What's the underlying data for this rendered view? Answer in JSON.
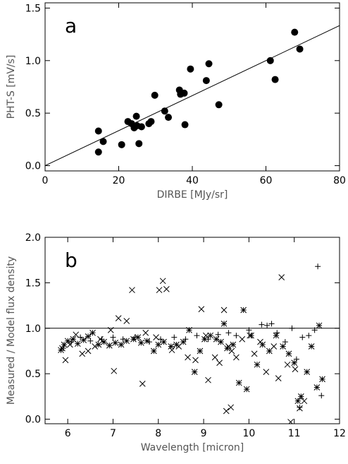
{
  "chart_data": [
    {
      "type": "scatter",
      "panel_label": "a",
      "xlabel": "DIRBE [MJy/sr]",
      "ylabel": "PHT-S [mV/s]",
      "xlim": [
        0,
        80
      ],
      "ylim": [
        -0.05,
        1.55
      ],
      "xticks": [
        0,
        20,
        40,
        60,
        80
      ],
      "yticks": [
        0.0,
        0.5,
        1.0,
        1.5
      ],
      "xtick_labels": [
        "0",
        "20",
        "40",
        "60",
        "80"
      ],
      "ytick_labels": [
        "0.0",
        "0.5",
        "1.0",
        "1.5"
      ],
      "marker": "filled-circle",
      "fit_line": {
        "slope": 0.01667,
        "intercept": 0.0
      },
      "points": [
        {
          "x": 14.5,
          "y": 0.33
        },
        {
          "x": 14.5,
          "y": 0.13
        },
        {
          "x": 15.8,
          "y": 0.23
        },
        {
          "x": 20.8,
          "y": 0.2
        },
        {
          "x": 22.5,
          "y": 0.42
        },
        {
          "x": 23.5,
          "y": 0.4
        },
        {
          "x": 24.2,
          "y": 0.36
        },
        {
          "x": 24.8,
          "y": 0.47
        },
        {
          "x": 25.0,
          "y": 0.38
        },
        {
          "x": 25.5,
          "y": 0.21
        },
        {
          "x": 26.2,
          "y": 0.37
        },
        {
          "x": 28.2,
          "y": 0.4
        },
        {
          "x": 28.8,
          "y": 0.42
        },
        {
          "x": 29.8,
          "y": 0.67
        },
        {
          "x": 32.5,
          "y": 0.52
        },
        {
          "x": 33.5,
          "y": 0.46
        },
        {
          "x": 36.5,
          "y": 0.72
        },
        {
          "x": 36.8,
          "y": 0.68
        },
        {
          "x": 37.8,
          "y": 0.69
        },
        {
          "x": 38.0,
          "y": 0.39
        },
        {
          "x": 39.5,
          "y": 0.92
        },
        {
          "x": 43.8,
          "y": 0.81
        },
        {
          "x": 44.5,
          "y": 0.97
        },
        {
          "x": 47.2,
          "y": 0.58
        },
        {
          "x": 61.2,
          "y": 1.0
        },
        {
          "x": 62.5,
          "y": 0.82
        },
        {
          "x": 67.8,
          "y": 1.27
        },
        {
          "x": 69.2,
          "y": 1.11
        }
      ]
    },
    {
      "type": "scatter",
      "panel_label": "b",
      "xlabel": "Wavelength [micron]",
      "ylabel": "Measured / Model flux density",
      "xlim": [
        5.5,
        12
      ],
      "ylim": [
        -0.05,
        2.0
      ],
      "xticks": [
        6,
        7,
        8,
        9,
        10,
        11,
        12
      ],
      "yticks": [
        0.0,
        0.5,
        1.0,
        1.5,
        2.0
      ],
      "xtick_labels": [
        "6",
        "7",
        "8",
        "9",
        "10",
        "11",
        "12"
      ],
      "ytick_labels": [
        "0.0",
        "0.5",
        "1.0",
        "1.5",
        "2.0"
      ],
      "reference_line": 1.0,
      "series": [
        {
          "marker": "x",
          "points": [
            {
              "x": 5.88,
              "y": 0.78
            },
            {
              "x": 5.95,
              "y": 0.65
            },
            {
              "x": 6.05,
              "y": 0.82
            },
            {
              "x": 6.18,
              "y": 0.93
            },
            {
              "x": 6.32,
              "y": 0.72
            },
            {
              "x": 6.45,
              "y": 0.75
            },
            {
              "x": 6.6,
              "y": 0.8
            },
            {
              "x": 6.72,
              "y": 0.88
            },
            {
              "x": 6.95,
              "y": 0.98
            },
            {
              "x": 7.02,
              "y": 0.53
            },
            {
              "x": 7.12,
              "y": 1.11
            },
            {
              "x": 7.3,
              "y": 1.08
            },
            {
              "x": 7.42,
              "y": 1.42
            },
            {
              "x": 7.65,
              "y": 0.39
            },
            {
              "x": 7.72,
              "y": 0.95
            },
            {
              "x": 7.95,
              "y": 0.9
            },
            {
              "x": 8.02,
              "y": 1.42
            },
            {
              "x": 8.1,
              "y": 1.52
            },
            {
              "x": 8.18,
              "y": 1.43
            },
            {
              "x": 8.3,
              "y": 0.76
            },
            {
              "x": 8.45,
              "y": 0.8
            },
            {
              "x": 8.65,
              "y": 0.68
            },
            {
              "x": 8.82,
              "y": 0.65
            },
            {
              "x": 8.95,
              "y": 1.21
            },
            {
              "x": 9.05,
              "y": 0.92
            },
            {
              "x": 9.1,
              "y": 0.43
            },
            {
              "x": 9.25,
              "y": 0.68
            },
            {
              "x": 9.35,
              "y": 0.62
            },
            {
              "x": 9.45,
              "y": 1.2
            },
            {
              "x": 9.55,
              "y": 0.8
            },
            {
              "x": 9.62,
              "y": 0.75
            },
            {
              "x": 9.72,
              "y": 0.68
            },
            {
              "x": 9.85,
              "y": 0.88
            },
            {
              "x": 10.02,
              "y": 0.92
            },
            {
              "x": 10.12,
              "y": 0.72
            },
            {
              "x": 10.25,
              "y": 0.85
            },
            {
              "x": 10.38,
              "y": 0.52
            },
            {
              "x": 10.55,
              "y": 0.8
            },
            {
              "x": 10.65,
              "y": 0.45
            },
            {
              "x": 10.72,
              "y": 1.56
            },
            {
              "x": 10.85,
              "y": 0.6
            },
            {
              "x": 10.92,
              "y": -0.03
            },
            {
              "x": 11.02,
              "y": 0.55
            },
            {
              "x": 11.12,
              "y": 0.12
            },
            {
              "x": 11.22,
              "y": 0.2
            },
            {
              "x": 9.5,
              "y": 0.09
            },
            {
              "x": 9.6,
              "y": 0.13
            }
          ]
        },
        {
          "marker": "asterisk",
          "points": [
            {
              "x": 5.85,
              "y": 0.76
            },
            {
              "x": 5.92,
              "y": 0.82
            },
            {
              "x": 6.0,
              "y": 0.86
            },
            {
              "x": 6.12,
              "y": 0.88
            },
            {
              "x": 6.22,
              "y": 0.83
            },
            {
              "x": 6.35,
              "y": 0.87
            },
            {
              "x": 6.45,
              "y": 0.91
            },
            {
              "x": 6.55,
              "y": 0.95
            },
            {
              "x": 6.68,
              "y": 0.82
            },
            {
              "x": 6.8,
              "y": 0.85
            },
            {
              "x": 6.92,
              "y": 0.81
            },
            {
              "x": 7.05,
              "y": 0.84
            },
            {
              "x": 7.18,
              "y": 0.82
            },
            {
              "x": 7.3,
              "y": 0.86
            },
            {
              "x": 7.45,
              "y": 0.88
            },
            {
              "x": 7.55,
              "y": 0.9
            },
            {
              "x": 7.62,
              "y": 0.84
            },
            {
              "x": 7.75,
              "y": 0.86
            },
            {
              "x": 7.9,
              "y": 0.75
            },
            {
              "x": 8.0,
              "y": 0.82
            },
            {
              "x": 8.12,
              "y": 0.85
            },
            {
              "x": 8.28,
              "y": 0.8
            },
            {
              "x": 8.4,
              "y": 0.82
            },
            {
              "x": 8.55,
              "y": 0.85
            },
            {
              "x": 8.68,
              "y": 0.98
            },
            {
              "x": 8.8,
              "y": 0.52
            },
            {
              "x": 8.92,
              "y": 0.75
            },
            {
              "x": 9.02,
              "y": 0.88
            },
            {
              "x": 9.15,
              "y": 0.92
            },
            {
              "x": 9.28,
              "y": 0.88
            },
            {
              "x": 9.38,
              "y": 0.85
            },
            {
              "x": 9.45,
              "y": 1.05
            },
            {
              "x": 9.52,
              "y": 0.78
            },
            {
              "x": 9.65,
              "y": 0.82
            },
            {
              "x": 9.78,
              "y": 0.4
            },
            {
              "x": 9.88,
              "y": 1.2
            },
            {
              "x": 9.95,
              "y": 0.33
            },
            {
              "x": 10.05,
              "y": 0.92
            },
            {
              "x": 10.18,
              "y": 0.6
            },
            {
              "x": 10.3,
              "y": 0.82
            },
            {
              "x": 10.45,
              "y": 0.75
            },
            {
              "x": 10.6,
              "y": 0.92
            },
            {
              "x": 10.75,
              "y": 0.8
            },
            {
              "x": 10.88,
              "y": 0.72
            },
            {
              "x": 11.0,
              "y": 0.62
            },
            {
              "x": 11.08,
              "y": 0.2
            },
            {
              "x": 11.15,
              "y": 0.25
            },
            {
              "x": 11.28,
              "y": 0.52
            },
            {
              "x": 11.38,
              "y": 0.8
            },
            {
              "x": 11.5,
              "y": 0.35
            },
            {
              "x": 11.55,
              "y": 1.03
            },
            {
              "x": 11.62,
              "y": 0.44
            }
          ]
        },
        {
          "marker": "plus",
          "points": [
            {
              "x": 5.9,
              "y": 0.78
            },
            {
              "x": 6.08,
              "y": 0.85
            },
            {
              "x": 6.28,
              "y": 0.9
            },
            {
              "x": 6.5,
              "y": 0.86
            },
            {
              "x": 6.75,
              "y": 0.88
            },
            {
              "x": 7.0,
              "y": 0.9
            },
            {
              "x": 7.22,
              "y": 0.88
            },
            {
              "x": 7.48,
              "y": 0.9
            },
            {
              "x": 7.8,
              "y": 0.85
            },
            {
              "x": 8.05,
              "y": 0.88
            },
            {
              "x": 8.35,
              "y": 0.9
            },
            {
              "x": 8.6,
              "y": 0.88
            },
            {
              "x": 8.85,
              "y": 0.92
            },
            {
              "x": 9.1,
              "y": 0.88
            },
            {
              "x": 9.32,
              "y": 0.93
            },
            {
              "x": 9.55,
              "y": 0.95
            },
            {
              "x": 9.72,
              "y": 0.92
            },
            {
              "x": 10.0,
              "y": 0.98
            },
            {
              "x": 10.28,
              "y": 1.04
            },
            {
              "x": 10.4,
              "y": 1.03
            },
            {
              "x": 10.5,
              "y": 1.05
            },
            {
              "x": 10.62,
              "y": 0.95
            },
            {
              "x": 10.8,
              "y": 0.85
            },
            {
              "x": 10.95,
              "y": 1.0
            },
            {
              "x": 11.18,
              "y": 0.9
            },
            {
              "x": 11.32,
              "y": 0.92
            },
            {
              "x": 11.45,
              "y": 0.98
            },
            {
              "x": 11.52,
              "y": 1.68
            },
            {
              "x": 11.6,
              "y": 0.26
            },
            {
              "x": 11.12,
              "y": 0.13
            },
            {
              "x": 11.05,
              "y": 0.66
            }
          ]
        }
      ]
    }
  ]
}
